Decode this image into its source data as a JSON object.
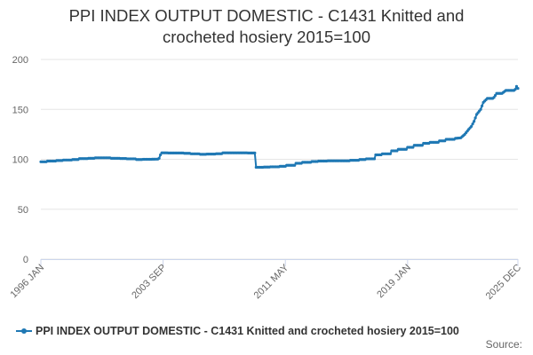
{
  "chart_data": {
    "type": "line",
    "title": [
      "PPI INDEX OUTPUT DOMESTIC - C1431 Knitted and",
      "crocheted hosiery 2015=100"
    ],
    "xlabel": "",
    "ylabel": "",
    "x_start": "1996 JAN",
    "x_end": "2025 DEC",
    "x_ticks": [
      "1996 JAN",
      "2003 SEP",
      "2011 MAY",
      "2019 JAN",
      "2025 DEC"
    ],
    "y_ticks": [
      0,
      50,
      100,
      150,
      200
    ],
    "ylim": [
      0,
      200
    ],
    "grid": true,
    "legend_position": "bottom",
    "color": "#1f78b4",
    "series": [
      {
        "name": "PPI INDEX OUTPUT DOMESTIC - C1431 Knitted and crocheted hosiery 2015=100",
        "points": [
          [
            "1996 JAN",
            97.5
          ],
          [
            "1996 JUN",
            98.2
          ],
          [
            "1997 JAN",
            98.8
          ],
          [
            "1997 JUN",
            99.3
          ],
          [
            "1998 JAN",
            99.8
          ],
          [
            "1998 JUN",
            100.7
          ],
          [
            "1999 JAN",
            101.0
          ],
          [
            "1999 JUN",
            101.5
          ],
          [
            "2000 JAN",
            101.5
          ],
          [
            "2000 JUN",
            101.0
          ],
          [
            "2001 JAN",
            100.8
          ],
          [
            "2001 JUN",
            100.5
          ],
          [
            "2002 JAN",
            99.8
          ],
          [
            "2002 JUN",
            100.0
          ],
          [
            "2003 JAN",
            100.1
          ],
          [
            "2003 MAY",
            100.2
          ],
          [
            "2003 JUN",
            101.0
          ],
          [
            "2003 JUL",
            104.5
          ],
          [
            "2003 AUG",
            106.5
          ],
          [
            "2004 JAN",
            106.3
          ],
          [
            "2005 JAN",
            106.0
          ],
          [
            "2005 JUN",
            105.5
          ],
          [
            "2006 JAN",
            105.0
          ],
          [
            "2006 JUN",
            105.2
          ],
          [
            "2007 JAN",
            105.6
          ],
          [
            "2007 JUN",
            106.5
          ],
          [
            "2008 JAN",
            106.5
          ],
          [
            "2009 JAN",
            106.3
          ],
          [
            "2009 JUN",
            106.3
          ],
          [
            "2009 JUL",
            92.0
          ],
          [
            "2010 JAN",
            92.2
          ],
          [
            "2010 JUN",
            92.5
          ],
          [
            "2011 JAN",
            93.0
          ],
          [
            "2011 JUN",
            94.0
          ],
          [
            "2012 JAN",
            96.0
          ],
          [
            "2012 JUN",
            97.0
          ],
          [
            "2013 JAN",
            97.8
          ],
          [
            "2013 JUN",
            98.2
          ],
          [
            "2014 JAN",
            98.5
          ],
          [
            "2015 JAN",
            98.5
          ],
          [
            "2015 JUN",
            99.0
          ],
          [
            "2016 JAN",
            99.8
          ],
          [
            "2016 JUN",
            100.5
          ],
          [
            "2017 JAN",
            104.5
          ],
          [
            "2017 JUN",
            105.5
          ],
          [
            "2018 JAN",
            108.5
          ],
          [
            "2018 JUN",
            110.0
          ],
          [
            "2019 JAN",
            112.0
          ],
          [
            "2019 JUN",
            114.0
          ],
          [
            "2020 JAN",
            116.0
          ],
          [
            "2020 JUN",
            117.0
          ],
          [
            "2021 JAN",
            118.5
          ],
          [
            "2021 JUN",
            120.0
          ],
          [
            "2022 JAN",
            121.0
          ],
          [
            "2022 MAY",
            121.5
          ],
          [
            "2022 AUG",
            125.0
          ],
          [
            "2022 NOV",
            130.0
          ],
          [
            "2023 JAN",
            133.0
          ],
          [
            "2023 MAR",
            138.0
          ],
          [
            "2023 MAY",
            145.0
          ],
          [
            "2023 AUG",
            150.0
          ],
          [
            "2023 OCT",
            157.0
          ],
          [
            "2024 JAN",
            161.0
          ],
          [
            "2024 JUN",
            162.0
          ],
          [
            "2024 AUG",
            166.0
          ],
          [
            "2025 JAN",
            167.0
          ],
          [
            "2025 MAR",
            169.0
          ],
          [
            "2025 OCT",
            170.0
          ],
          [
            "2025 NOV",
            173.0
          ],
          [
            "2025 DEC",
            171.0
          ]
        ]
      }
    ]
  },
  "source_label": "Source:"
}
